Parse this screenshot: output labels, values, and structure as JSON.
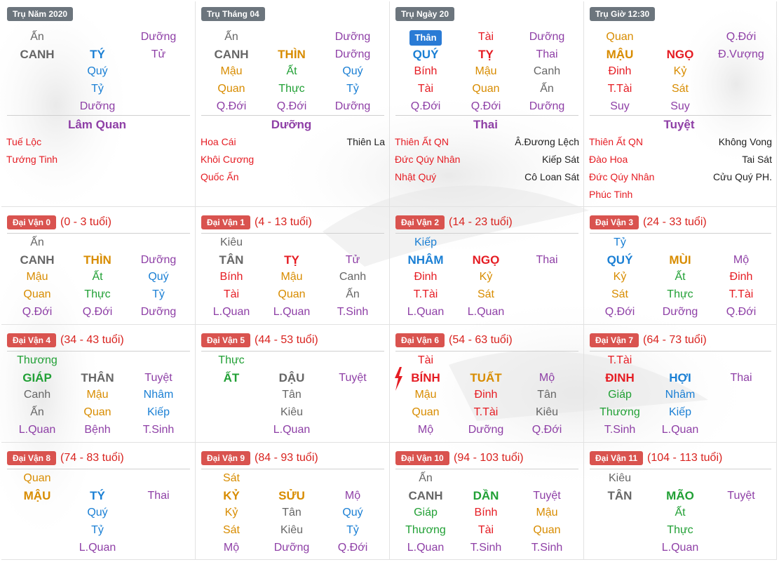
{
  "colors": {
    "gray": "#666666",
    "purple": "#8e3fa6",
    "blue": "#1a7fd4",
    "orange": "#d88c00",
    "green": "#21a035",
    "red": "#e51c23",
    "badge_red": "#d9534f",
    "badge_gray": "#6c757d",
    "than_badge": "#2a7bd5"
  },
  "pillars": [
    {
      "title": "Trụ Năm 2020",
      "rows": [
        [
          "Ấn",
          "",
          "Dưỡng"
        ],
        [
          "CANH",
          "TÝ",
          "Tử"
        ],
        [
          "",
          "Quý",
          ""
        ],
        [
          "",
          "Tỷ",
          ""
        ],
        [
          "",
          "Dưỡng",
          ""
        ]
      ],
      "state": "Lâm Quan",
      "left_stars": [
        "Tuế Lộc",
        "Tướng Tinh"
      ],
      "right_stars": []
    },
    {
      "title": "Trụ Tháng 04",
      "rows": [
        [
          "Ấn",
          "",
          "Dưỡng"
        ],
        [
          "CANH",
          "THÌN",
          "Dưỡng"
        ],
        [
          "Mậu",
          "Ất",
          "Quý"
        ],
        [
          "Quan",
          "Thực",
          "Tỷ"
        ],
        [
          "Q.Đới",
          "Q.Đới",
          "Dưỡng"
        ]
      ],
      "state": "Dưỡng",
      "left_stars": [
        "Hoa Cái",
        "Khôi Cương",
        "Quốc Ấn"
      ],
      "right_stars": [
        "Thiên La"
      ]
    },
    {
      "title": "Trụ Ngày 20",
      "than_label": "Thân",
      "rows": [
        [
          "",
          "Tài",
          "Dưỡng"
        ],
        [
          "QUÝ",
          "TỴ",
          "Thai"
        ],
        [
          "Bính",
          "Mậu",
          "Canh"
        ],
        [
          "Tài",
          "Quan",
          "Ấn"
        ],
        [
          "Q.Đới",
          "Q.Đới",
          "Dưỡng"
        ]
      ],
      "state": "Thai",
      "left_stars": [
        "Thiên Ất QN",
        "Đức Qúy Nhân",
        "Nhật Quý"
      ],
      "right_stars": [
        "Â.Đương Lệch",
        "Kiếp Sát",
        "Cô Loan Sát"
      ]
    },
    {
      "title": "Trụ Giờ 12:30",
      "rows": [
        [
          "Quan",
          "",
          "Q.Đới"
        ],
        [
          "MẬU",
          "NGỌ",
          "Đ.Vượng"
        ],
        [
          "Đinh",
          "Kỷ",
          ""
        ],
        [
          "T.Tài",
          "Sát",
          ""
        ],
        [
          "Suy",
          "Suy",
          ""
        ]
      ],
      "state": "Tuyệt",
      "left_stars": [
        "Thiên Ất QN",
        "Đào Hoa",
        "Đức Qúy Nhân",
        "Phúc Tinh"
      ],
      "right_stars": [
        "Không Vong",
        "Tai Sát",
        "Cửu Quý PH."
      ]
    }
  ],
  "dai_van": [
    {
      "label": "Đại Vận 0",
      "age": "(0 - 3 tuổi)",
      "rows": [
        [
          "Ấn",
          "",
          ""
        ],
        [
          "CANH",
          "THÌN",
          "Dưỡng"
        ],
        [
          "Mậu",
          "Ất",
          "Quý"
        ],
        [
          "Quan",
          "Thực",
          "Tỷ"
        ],
        [
          "Q.Đới",
          "Q.Đới",
          "Dưỡng"
        ]
      ]
    },
    {
      "label": "Đại Vận 1",
      "age": "(4 - 13 tuổi)",
      "rows": [
        [
          "Kiêu",
          "",
          ""
        ],
        [
          "TÂN",
          "TỴ",
          "Tử"
        ],
        [
          "Bính",
          "Mậu",
          "Canh"
        ],
        [
          "Tài",
          "Quan",
          "Ấn"
        ],
        [
          "L.Quan",
          "L.Quan",
          "T.Sinh"
        ]
      ]
    },
    {
      "label": "Đại Vận 2",
      "age": "(14 - 23 tuổi)",
      "rows": [
        [
          "Kiếp",
          "",
          ""
        ],
        [
          "NHÂM",
          "NGỌ",
          "Thai"
        ],
        [
          "Đinh",
          "Kỷ",
          ""
        ],
        [
          "T.Tài",
          "Sát",
          ""
        ],
        [
          "L.Quan",
          "L.Quan",
          ""
        ]
      ]
    },
    {
      "label": "Đại Vận 3",
      "age": "(24 - 33 tuổi)",
      "rows": [
        [
          "Tỷ",
          "",
          ""
        ],
        [
          "QUÝ",
          "MÙI",
          "Mộ"
        ],
        [
          "Kỷ",
          "Ất",
          "Đinh"
        ],
        [
          "Sát",
          "Thực",
          "T.Tài"
        ],
        [
          "Q.Đới",
          "Dưỡng",
          "Q.Đới"
        ]
      ]
    },
    {
      "label": "Đại Vận 4",
      "age": "(34 - 43 tuổi)",
      "rows": [
        [
          "Thương",
          "",
          ""
        ],
        [
          "GIÁP",
          "THÂN",
          "Tuyệt"
        ],
        [
          "Canh",
          "Mậu",
          "Nhâm"
        ],
        [
          "Ấn",
          "Quan",
          "Kiếp"
        ],
        [
          "L.Quan",
          "Bệnh",
          "T.Sinh"
        ]
      ]
    },
    {
      "label": "Đại Vận 5",
      "age": "(44 - 53 tuổi)",
      "rows": [
        [
          "Thực",
          "",
          ""
        ],
        [
          "ẤT",
          "DẬU",
          "Tuyệt"
        ],
        [
          "",
          "Tân",
          ""
        ],
        [
          "",
          "Kiêu",
          ""
        ],
        [
          "",
          "L.Quan",
          ""
        ]
      ]
    },
    {
      "label": "Đại Vận 6",
      "age": "(54 - 63 tuổi)",
      "rows": [
        [
          "Tài",
          "",
          ""
        ],
        [
          "BÍNH",
          "TUẤT",
          "Mộ"
        ],
        [
          "Mậu",
          "Đinh",
          "Tân"
        ],
        [
          "Quan",
          "T.Tài",
          "Kiêu"
        ],
        [
          "Mộ",
          "Dưỡng",
          "Q.Đới"
        ]
      ]
    },
    {
      "label": "Đại Vận 7",
      "age": "(64 - 73 tuổi)",
      "rows": [
        [
          "T.Tài",
          "",
          ""
        ],
        [
          "ĐINH",
          "HỢI",
          "Thai"
        ],
        [
          "Giáp",
          "Nhâm",
          ""
        ],
        [
          "Thương",
          "Kiếp",
          ""
        ],
        [
          "T.Sinh",
          "L.Quan",
          ""
        ]
      ]
    },
    {
      "label": "Đại Vận 8",
      "age": "(74 - 83 tuổi)",
      "rows": [
        [
          "Quan",
          "",
          ""
        ],
        [
          "MẬU",
          "TÝ",
          "Thai"
        ],
        [
          "",
          "Quý",
          ""
        ],
        [
          "",
          "Tỷ",
          ""
        ],
        [
          "",
          "L.Quan",
          ""
        ]
      ]
    },
    {
      "label": "Đại Vận 9",
      "age": "(84 - 93 tuổi)",
      "rows": [
        [
          "Sát",
          "",
          ""
        ],
        [
          "KỶ",
          "SỬU",
          "Mộ"
        ],
        [
          "Kỷ",
          "Tân",
          "Quý"
        ],
        [
          "Sát",
          "Kiêu",
          "Tỷ"
        ],
        [
          "Mộ",
          "Dưỡng",
          "Q.Đới"
        ]
      ]
    },
    {
      "label": "Đại Vận 10",
      "age": "(94 - 103 tuổi)",
      "rows": [
        [
          "Ấn",
          "",
          ""
        ],
        [
          "CANH",
          "DẦN",
          "Tuyệt"
        ],
        [
          "Giáp",
          "Bính",
          "Mậu"
        ],
        [
          "Thương",
          "Tài",
          "Quan"
        ],
        [
          "L.Quan",
          "T.Sinh",
          "T.Sinh"
        ]
      ]
    },
    {
      "label": "Đại Vận 11",
      "age": "(104 - 113 tuổi)",
      "rows": [
        [
          "Kiêu",
          "",
          ""
        ],
        [
          "TÂN",
          "MÃO",
          "Tuyệt"
        ],
        [
          "",
          "Ất",
          ""
        ],
        [
          "",
          "Thực",
          ""
        ],
        [
          "",
          "L.Quan",
          ""
        ]
      ]
    }
  ]
}
